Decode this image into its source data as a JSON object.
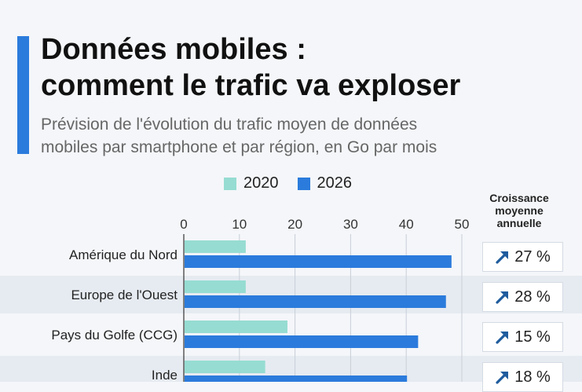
{
  "header": {
    "title_line1": "Données mobiles :",
    "title_line2": "comment le trafic va exploser",
    "subtitle_line1": "Prévision de l'évolution du trafic moyen de données",
    "subtitle_line2": "mobiles par smartphone et par région, en Go par mois"
  },
  "legend": [
    {
      "label": "2020",
      "color": "#96dcd2"
    },
    {
      "label": "2026",
      "color": "#2b7bdc"
    }
  ],
  "growth_header": {
    "line1": "Croissance",
    "line2": "moyenne",
    "line3": "annuelle"
  },
  "colors": {
    "accent": "#2b7bdc",
    "bar_2020": "#96dcd2",
    "bar_2026": "#2b7bdc",
    "row_stripe": "#e6ebf1",
    "arrow": "#1f5c9e"
  },
  "icons": {
    "growth": "arrow-up-right-icon"
  },
  "chart_data": {
    "type": "bar",
    "orientation": "horizontal",
    "categories": [
      "Amérique du Nord",
      "Europe de l'Ouest",
      "Pays du Golfe (CCG)",
      "Inde"
    ],
    "series": [
      {
        "name": "2020",
        "values": [
          11,
          11,
          18.5,
          14.5
        ]
      },
      {
        "name": "2026",
        "values": [
          48,
          47,
          42,
          40
        ]
      }
    ],
    "growth": [
      "27 %",
      "28 %",
      "15 %",
      "18 %"
    ],
    "xlim": [
      0,
      50
    ],
    "xticks": [
      0,
      10,
      20,
      30,
      40,
      50
    ],
    "xtick_labels": [
      "0",
      "10",
      "20",
      "30",
      "40",
      "50"
    ],
    "legend_position": "top",
    "grid": true
  }
}
